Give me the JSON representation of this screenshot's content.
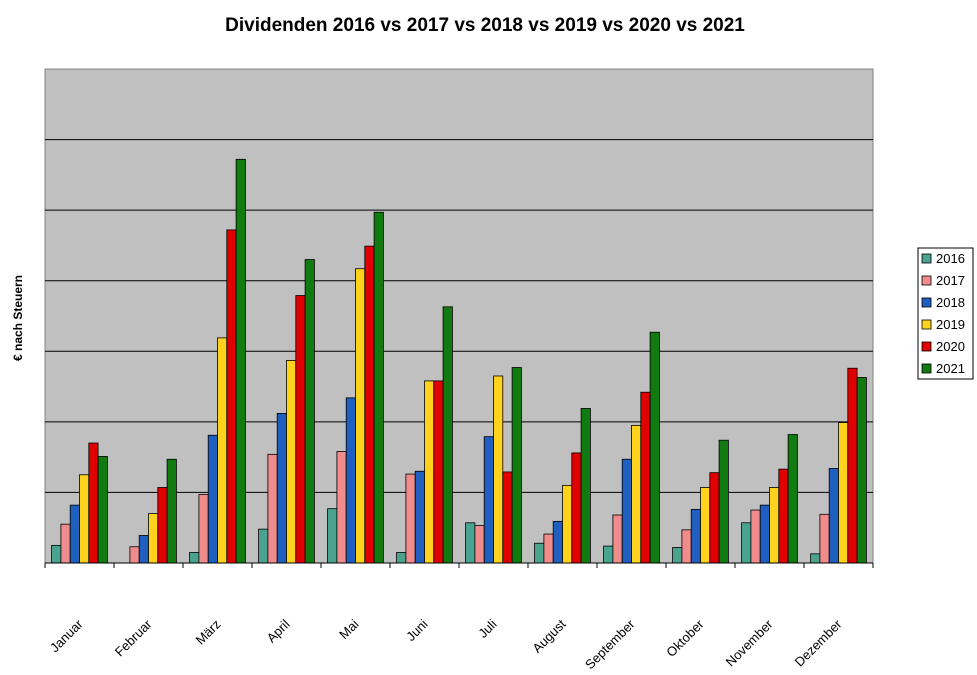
{
  "chart_data": {
    "type": "bar",
    "title": "Dividenden 2016 vs 2017 vs 2018 vs 2019 vs 2020 vs 2021",
    "xlabel": "",
    "ylabel": "€ nach Steuern",
    "ylim": [
      0,
      7
    ],
    "grid": true,
    "legend_position": "right",
    "categories": [
      "Januar",
      "Februar",
      "März",
      "April",
      "Mai",
      "Juni",
      "Juli",
      "August",
      "September",
      "Oktober",
      "November",
      "Dezember"
    ],
    "series": [
      {
        "name": "2016",
        "color": "#4aa38f",
        "values": [
          0.25,
          0.0,
          0.15,
          0.48,
          0.77,
          0.15,
          0.57,
          0.28,
          0.24,
          0.22,
          0.57,
          0.13
        ]
      },
      {
        "name": "2017",
        "color": "#f08c8c",
        "values": [
          0.55,
          0.23,
          0.97,
          1.54,
          1.58,
          1.26,
          0.53,
          0.41,
          0.68,
          0.47,
          0.75,
          0.69
        ]
      },
      {
        "name": "2018",
        "color": "#1f5fbf",
        "values": [
          0.82,
          0.39,
          1.81,
          2.12,
          2.34,
          1.3,
          1.79,
          0.59,
          1.47,
          0.76,
          0.82,
          1.34
        ]
      },
      {
        "name": "2019",
        "color": "#ffd21e",
        "values": [
          1.25,
          0.7,
          3.19,
          2.87,
          4.17,
          2.58,
          2.65,
          1.1,
          1.95,
          1.07,
          1.07,
          1.99
        ]
      },
      {
        "name": "2020",
        "color": "#e00000",
        "values": [
          1.7,
          1.07,
          4.72,
          3.79,
          4.49,
          2.58,
          1.29,
          1.56,
          2.42,
          1.28,
          1.33,
          2.76
        ]
      },
      {
        "name": "2021",
        "color": "#117a11",
        "values": [
          1.51,
          1.47,
          5.72,
          4.3,
          4.97,
          3.63,
          2.77,
          2.19,
          3.27,
          1.74,
          1.82,
          2.63
        ]
      }
    ]
  }
}
